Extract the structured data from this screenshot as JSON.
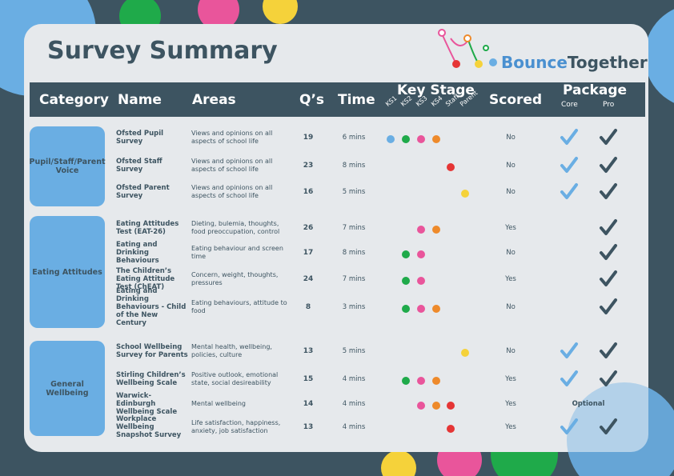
{
  "header": {
    "title": "Survey Summary",
    "logo": {
      "part1": "Bounce",
      "part2": "Together"
    }
  },
  "columns": {
    "category": "Category",
    "name": "Name",
    "areas": "Areas",
    "qs": "Q’s",
    "time": "Time",
    "key_stage": "Key Stage",
    "scored": "Scored",
    "package": "Package",
    "core": "Core",
    "pro": "Pro"
  },
  "key_stages": [
    {
      "label": "KS1",
      "color": "#6aaee3"
    },
    {
      "label": "KS2",
      "color": "#1faa4a"
    },
    {
      "label": "KS3",
      "color": "#e9559b"
    },
    {
      "label": "KS4",
      "color": "#ee8a2b"
    },
    {
      "label": "Staff",
      "color": "#e53535"
    },
    {
      "label": "Parent",
      "color": "#f5d23a"
    }
  ],
  "groups": [
    {
      "category": "Pupil/Staff/Parent Voice",
      "rows": [
        {
          "name": "Ofsted Pupil Survey",
          "areas": "Views and opinions on all aspects of school life",
          "qs": 19,
          "time": "6 mins",
          "stages": [
            "KS1",
            "KS2",
            "KS3",
            "KS4"
          ],
          "scored": "No",
          "package": {
            "core": true,
            "pro": true
          }
        },
        {
          "name": "Ofsted Staff Survey",
          "areas": "Views and opinions on all aspects of school life",
          "qs": 23,
          "time": "8 mins",
          "stages": [
            "Staff"
          ],
          "scored": "No",
          "package": {
            "core": true,
            "pro": true
          }
        },
        {
          "name": "Ofsted Parent Survey",
          "areas": "Views and opinions on all aspects of school life",
          "qs": 16,
          "time": "5 mins",
          "stages": [
            "Parent"
          ],
          "scored": "No",
          "package": {
            "core": true,
            "pro": true
          }
        }
      ]
    },
    {
      "category": "Eating Attitudes",
      "rows": [
        {
          "name": "Eating Attitudes Test (EAT-26)",
          "areas": "Dieting, bulemia, thoughts, food preoccupation, control",
          "qs": 26,
          "time": "7 mins",
          "stages": [
            "KS3",
            "KS4"
          ],
          "scored": "Yes",
          "package": {
            "core": false,
            "pro": true
          }
        },
        {
          "name": "Eating and Drinking Behaviours",
          "areas": "Eating behaviour and screen time",
          "qs": 17,
          "time": "8 mins",
          "stages": [
            "KS2",
            "KS3"
          ],
          "scored": "No",
          "package": {
            "core": false,
            "pro": true
          }
        },
        {
          "name": "The Children’s Eating Attitude Test (ChEAT)",
          "areas": "Concern, weight, thoughts, pressures",
          "qs": 24,
          "time": "7 mins",
          "stages": [
            "KS2",
            "KS3"
          ],
          "scored": "Yes",
          "package": {
            "core": false,
            "pro": true
          }
        },
        {
          "name": "Eating and Drinking Behaviours - Child of the New Century",
          "areas": "Eating behaviours, attitude to food",
          "qs": 8,
          "time": "3 mins",
          "stages": [
            "KS2",
            "KS3",
            "KS4"
          ],
          "scored": "No",
          "package": {
            "core": false,
            "pro": true
          }
        }
      ]
    },
    {
      "category": "General Wellbeing",
      "rows": [
        {
          "name": "School Wellbeing Survey for Parents",
          "areas": "Mental health, wellbeing, policies, culture",
          "qs": 13,
          "time": "5 mins",
          "stages": [
            "Parent"
          ],
          "scored": "No",
          "package": {
            "core": true,
            "pro": true
          }
        },
        {
          "name": "Stirling Children’s Wellbeing Scale",
          "areas": "Positive outlook, emotional state, social desireability",
          "qs": 15,
          "time": "4 mins",
          "stages": [
            "KS2",
            "KS3",
            "KS4"
          ],
          "scored": "Yes",
          "package": {
            "core": true,
            "pro": true
          }
        },
        {
          "name": "Warwick-Edinburgh Wellbeing Scale",
          "areas": "Mental wellbeing",
          "qs": 14,
          "time": "4 mins",
          "stages": [
            "KS3",
            "KS4",
            "Staff"
          ],
          "scored": "Yes",
          "package": "Optional"
        },
        {
          "name": "Workplace Wellbeing Snapshot Survey",
          "areas": "Life satisfaction, happiness, anxiety, job satisfaction",
          "qs": 13,
          "time": "4 mins",
          "stages": [
            "Staff"
          ],
          "scored": "Yes",
          "package": {
            "core": true,
            "pro": true
          }
        }
      ]
    }
  ]
}
